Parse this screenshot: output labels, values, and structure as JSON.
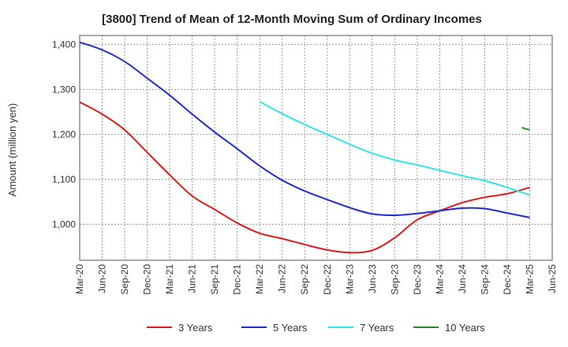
{
  "chart_data": {
    "type": "line",
    "title": "[3800]  Trend of Mean of 12-Month Moving Sum of Ordinary Incomes",
    "xlabel": "",
    "ylabel": "Amount (million yen)",
    "ylim": [
      920,
      1420
    ],
    "yticks": [
      1000,
      1100,
      1200,
      1300,
      1400
    ],
    "ytick_labels": [
      "1,000",
      "1,100",
      "1,200",
      "1,300",
      "1,400"
    ],
    "categories": [
      "Mar-20",
      "Jun-20",
      "Sep-20",
      "Dec-20",
      "Mar-21",
      "Jun-21",
      "Sep-21",
      "Dec-21",
      "Mar-22",
      "Jun-22",
      "Sep-22",
      "Dec-22",
      "Mar-23",
      "Jun-23",
      "Sep-23",
      "Dec-23",
      "Mar-24",
      "Jun-24",
      "Sep-24",
      "Dec-24",
      "Mar-25",
      "Jun-25"
    ],
    "grid": true,
    "legend_position": "bottom",
    "series": [
      {
        "name": "3 Years",
        "color": "#dd1c1c",
        "values": [
          1272,
          1245,
          1210,
          1160,
          1110,
          1063,
          1033,
          1003,
          980,
          968,
          955,
          943,
          937,
          942,
          970,
          1010,
          1030,
          1048,
          1060,
          1068,
          1082,
          null
        ]
      },
      {
        "name": "5 Years",
        "color": "#1f2dcc",
        "values": [
          1405,
          1388,
          1362,
          1325,
          1287,
          1245,
          1205,
          1168,
          1130,
          1098,
          1074,
          1055,
          1037,
          1023,
          1020,
          1024,
          1030,
          1036,
          1035,
          1025,
          1015,
          null
        ]
      },
      {
        "name": "7 Years",
        "color": "#33e6e6",
        "values": [
          null,
          null,
          null,
          null,
          null,
          null,
          null,
          null,
          1273,
          1246,
          1222,
          1200,
          1178,
          1158,
          1143,
          1132,
          1120,
          1108,
          1097,
          1082,
          1065,
          null
        ]
      },
      {
        "name": "10 Years",
        "color": "#2b8a2b",
        "values": [
          null,
          null,
          null,
          null,
          null,
          null,
          null,
          null,
          null,
          null,
          null,
          null,
          null,
          null,
          null,
          null,
          null,
          null,
          null,
          null,
          1210,
          null
        ],
        "segment_start": 1215
      }
    ]
  }
}
